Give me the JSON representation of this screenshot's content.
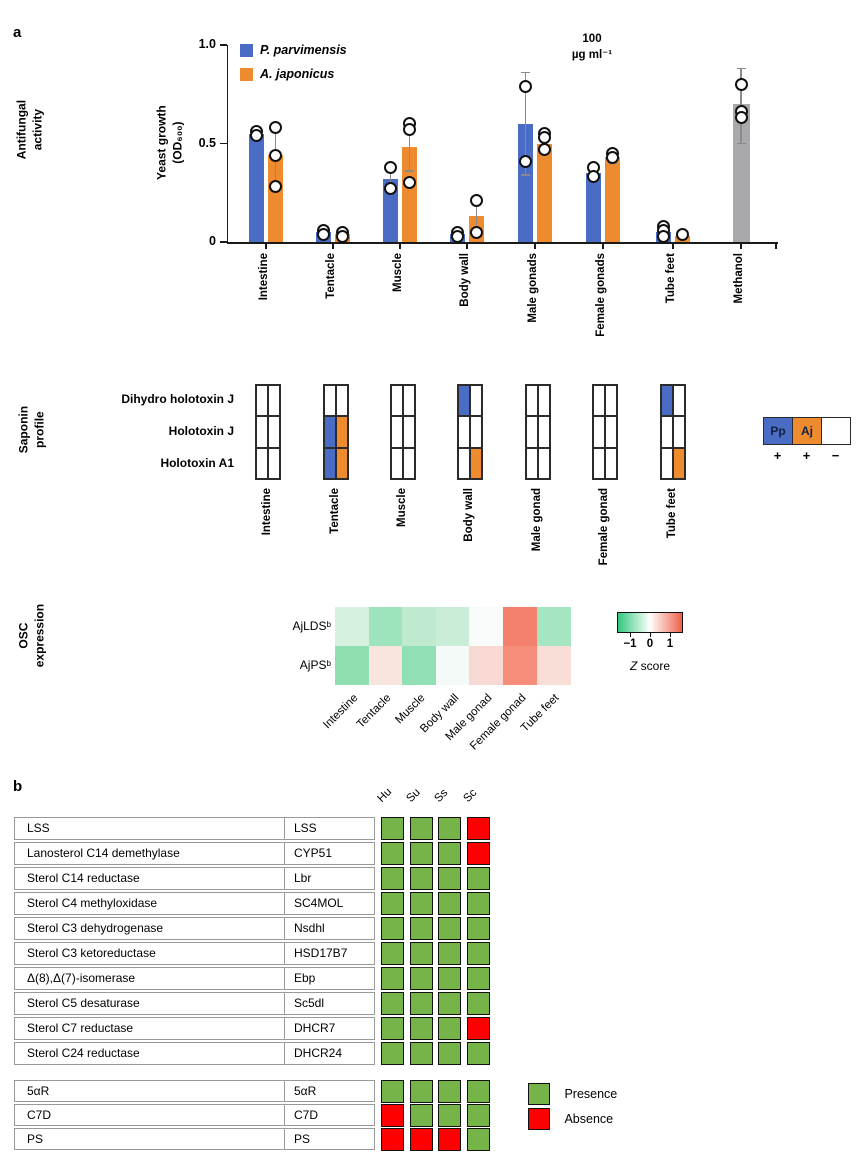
{
  "figure": {
    "panel_a_label": "a",
    "panel_b_label": "b"
  },
  "sections": {
    "antifungal_label": "Antifungal\nactivity",
    "saponin_label": "Saponin\nprofile",
    "osc_label": "OSC\nexpression"
  },
  "chart_data": [
    {
      "id": "antifungal-activity-bar-chart",
      "type": "bar",
      "ylabel": "Yeast growth\n(OD₆₀₀)",
      "ylim": [
        0,
        1.0
      ],
      "yticks": [
        {
          "value": 0,
          "label": "0"
        },
        {
          "value": 0.5,
          "label": "0.5"
        },
        {
          "value": 1.0,
          "label": "1.0"
        }
      ],
      "annotation": "100\nµg ml⁻¹",
      "categories": [
        "Intestine",
        "Tentacle",
        "Muscle",
        "Body wall",
        "Male gonads",
        "Female gonads",
        "Tube feet",
        "Methanol"
      ],
      "series": [
        {
          "name": "P. parvimensis",
          "color": "#4a6cc5",
          "values": [
            0.55,
            0.05,
            0.32,
            0.04,
            0.6,
            0.35,
            0.05,
            null
          ],
          "points": [
            [
              0.56,
              0.54
            ],
            [
              0.06,
              0.04
            ],
            [
              0.38,
              0.27
            ],
            [
              0.05,
              0.03
            ],
            [
              0.79,
              0.41
            ],
            [
              0.38,
              0.33
            ],
            [
              0.08,
              0.06,
              0.03
            ],
            null
          ],
          "error_ranges": [
            [
              0.53,
              0.57
            ],
            [
              0.03,
              0.07
            ],
            [
              0.25,
              0.39
            ],
            [
              0.02,
              0.05
            ],
            [
              0.34,
              0.86
            ],
            [
              0.31,
              0.39
            ],
            [
              0.02,
              0.08
            ],
            null
          ]
        },
        {
          "name": "A. japonicus",
          "color": "#ee8b2e",
          "values": [
            0.44,
            0.04,
            0.48,
            0.13,
            0.5,
            0.43,
            0.03,
            null
          ],
          "points": [
            [
              0.58,
              0.44,
              0.28
            ],
            [
              0.05,
              0.03
            ],
            [
              0.6,
              0.57,
              0.3
            ],
            [
              0.21,
              0.05
            ],
            [
              0.55,
              0.53,
              0.47
            ],
            [
              0.45,
              0.43
            ],
            [
              0.04
            ],
            null
          ],
          "error_ranges": [
            [
              0.28,
              0.59
            ],
            [
              0.02,
              0.06
            ],
            [
              0.36,
              0.6
            ],
            [
              0.04,
              0.22
            ],
            [
              0.46,
              0.54
            ],
            [
              0.4,
              0.46
            ],
            [
              0.02,
              0.05
            ],
            null
          ]
        },
        {
          "name": "Methanol",
          "color": "#a9a9ab",
          "values": [
            null,
            null,
            null,
            null,
            null,
            null,
            null,
            0.7
          ],
          "points": [
            null,
            null,
            null,
            null,
            null,
            null,
            null,
            [
              0.8,
              0.66,
              0.63
            ]
          ],
          "error_ranges": [
            null,
            null,
            null,
            null,
            null,
            null,
            null,
            [
              0.5,
              0.88
            ]
          ]
        }
      ]
    },
    {
      "id": "saponin-profile-grid",
      "type": "table",
      "rows": [
        "Dihydro holotoxin J",
        "Holotoxin J",
        "Holotoxin A1"
      ],
      "columns": [
        "Intestine",
        "Tentacle",
        "Muscle",
        "Body wall",
        "Male gonad",
        "Female gonad",
        "Tube feet"
      ],
      "species_colors": {
        "Pp": "#4a6cc5",
        "Aj": "#ee8b2e"
      },
      "cells": [
        [
          [
            0,
            0
          ],
          [
            0,
            0
          ],
          [
            0,
            0
          ]
        ],
        [
          [
            0,
            0
          ],
          [
            1,
            1
          ],
          [
            1,
            1
          ]
        ],
        [
          [
            0,
            0
          ],
          [
            0,
            0
          ],
          [
            0,
            0
          ]
        ],
        [
          [
            1,
            0
          ],
          [
            0,
            0
          ],
          [
            0,
            1
          ]
        ],
        [
          [
            0,
            0
          ],
          [
            0,
            0
          ],
          [
            0,
            0
          ]
        ],
        [
          [
            0,
            0
          ],
          [
            0,
            0
          ],
          [
            0,
            0
          ]
        ],
        [
          [
            1,
            0
          ],
          [
            0,
            0
          ],
          [
            0,
            1
          ]
        ]
      ],
      "legend": {
        "cells": [
          {
            "label": "Pp",
            "sign": "+"
          },
          {
            "label": "Aj",
            "sign": "+"
          },
          {
            "label": "",
            "sign": "−"
          }
        ]
      }
    },
    {
      "id": "osc-expression-heatmap",
      "type": "heatmap",
      "rows": [
        "AjLDSᵇ",
        "AjPSᵇ"
      ],
      "columns": [
        "Intestine",
        "Tentacle",
        "Muscle",
        "Body wall",
        "Male gonad",
        "Female gonad",
        "Tube feet"
      ],
      "z_scores": [
        [
          -0.5,
          -1.2,
          -0.8,
          -0.7,
          0.0,
          1.7,
          -1.1
        ],
        [
          -1.3,
          0.3,
          -1.3,
          -0.1,
          0.5,
          1.5,
          0.4
        ]
      ],
      "cell_colors": [
        [
          "#d7f1e1",
          "#9fe3bd",
          "#c0eacf",
          "#c9edd7",
          "#f8fcfa",
          "#f4816e",
          "#a5e5c1"
        ],
        [
          "#90dfb3",
          "#fae4de",
          "#91dfb4",
          "#f4faf8",
          "#f8d9d3",
          "#f68c7a",
          "#f9ded8"
        ]
      ],
      "colorbar": {
        "ticks": [
          "−1",
          "0",
          "1"
        ],
        "label_italic": "Z",
        "label_rest": " score",
        "gradient": [
          "#34c77f",
          "#ffffff",
          "#f0614c"
        ]
      }
    },
    {
      "id": "sterol-pathway-presence-table",
      "type": "table",
      "columns": [
        "Hu",
        "Su",
        "Ss",
        "Sc"
      ],
      "tables": [
        {
          "rows": [
            {
              "enzyme": "LSS",
              "gene": "LSS",
              "presence": [
                1,
                1,
                1,
                0
              ]
            },
            {
              "enzyme": "Lanosterol C14 demethylase",
              "gene": "CYP51",
              "presence": [
                1,
                1,
                1,
                0
              ]
            },
            {
              "enzyme": "Sterol C14 reductase",
              "gene": "Lbr",
              "presence": [
                1,
                1,
                1,
                1
              ]
            },
            {
              "enzyme": "Sterol C4 methyloxidase",
              "gene": "SC4MOL",
              "presence": [
                1,
                1,
                1,
                1
              ]
            },
            {
              "enzyme": "Sterol C3 dehydrogenase",
              "gene": "Nsdhl",
              "presence": [
                1,
                1,
                1,
                1
              ]
            },
            {
              "enzyme": "Sterol C3 ketoreductase",
              "gene": "HSD17B7",
              "presence": [
                1,
                1,
                1,
                1
              ]
            },
            {
              "enzyme": "Δ(8),Δ(7)-isomerase",
              "gene": "Ebp",
              "presence": [
                1,
                1,
                1,
                1
              ]
            },
            {
              "enzyme": "Sterol C5 desaturase",
              "gene": "Sc5dl",
              "presence": [
                1,
                1,
                1,
                1
              ]
            },
            {
              "enzyme": "Sterol C7 reductase",
              "gene": "DHCR7",
              "presence": [
                1,
                1,
                1,
                0
              ]
            },
            {
              "enzyme": "Sterol C24 reductase",
              "gene": "DHCR24",
              "presence": [
                1,
                1,
                1,
                1
              ]
            }
          ]
        },
        {
          "rows": [
            {
              "enzyme": "5αR",
              "gene": "5αR",
              "presence": [
                1,
                1,
                1,
                1
              ]
            },
            {
              "enzyme": "C7D",
              "gene": "C7D",
              "presence": [
                0,
                1,
                1,
                1
              ]
            },
            {
              "enzyme": "PS",
              "gene": "PS",
              "presence": [
                0,
                0,
                0,
                1
              ]
            }
          ]
        }
      ],
      "presence_color": "#76b44a",
      "absence_color": "#fe0000",
      "legend": [
        {
          "label": "Presence",
          "color": "#76b44a"
        },
        {
          "label": "Absence",
          "color": "#fe0000"
        }
      ]
    }
  ]
}
